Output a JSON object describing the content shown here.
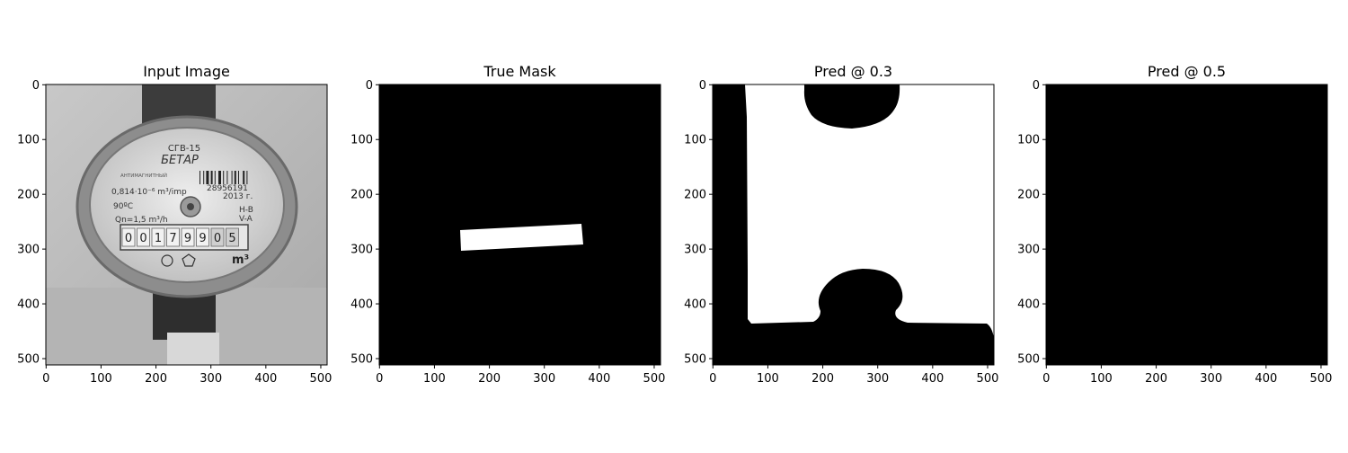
{
  "figure": {
    "panels": [
      {
        "title": "Input Image",
        "kind": "input-image"
      },
      {
        "title": "True Mask",
        "kind": "true-mask"
      },
      {
        "title": "Pred @ 0.3",
        "kind": "pred-mask-03"
      },
      {
        "title": "Pred @ 0.5",
        "kind": "pred-mask-05"
      }
    ],
    "x_ticks": [
      "0",
      "100",
      "200",
      "300",
      "400",
      "500"
    ],
    "y_ticks": [
      "0",
      "100",
      "200",
      "300",
      "400",
      "500"
    ],
    "x_tick_values": [
      0,
      100,
      200,
      300,
      400,
      500
    ],
    "y_tick_values": [
      0,
      100,
      200,
      300,
      400,
      500
    ],
    "image_size": 512
  },
  "meter": {
    "model": "СГВ-15",
    "brand": "БЕТАР",
    "antimagnetic": "АНТИМАГНИТНЫЙ",
    "pulse": "0,814·10⁻⁶ m³/imp",
    "serial": "28956191",
    "year": "2013 г.",
    "temp": "90ºC",
    "flow": "Qn=1,5 m³/h",
    "hb": "H-B",
    "va": "V-A",
    "digits": [
      "0",
      "0",
      "1",
      "7",
      "9",
      "9",
      "0",
      "5"
    ],
    "unit": "m³"
  },
  "colors": {
    "mask_on": "#ffffff",
    "mask_off": "#000000",
    "axis": "#000000"
  }
}
